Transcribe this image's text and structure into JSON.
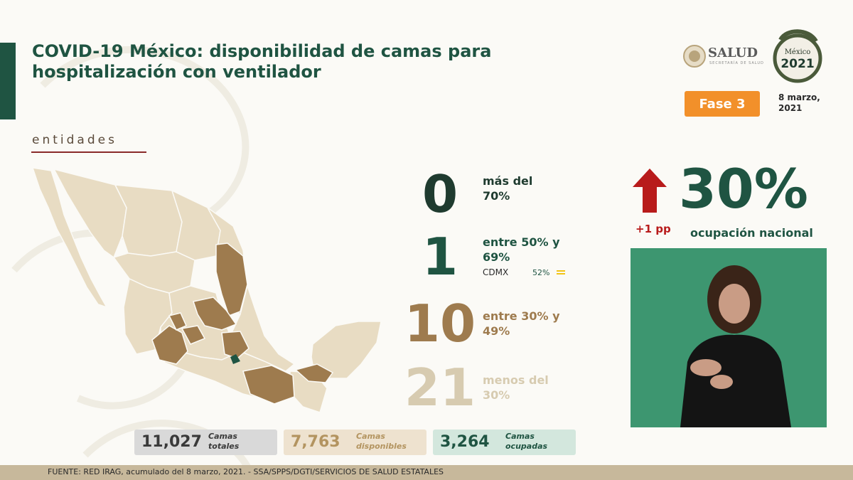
{
  "header": {
    "title": "COVID-19 México: disponibilidad de camas para hospitalización con ventilador",
    "section_label": "entidades"
  },
  "logos": {
    "salud_name": "SALUD",
    "salud_sub": "SECRETARÍA DE SALUD",
    "seal_country": "México",
    "seal_year": "2021"
  },
  "phase": "Fase 3",
  "date": "8 marzo, 2021",
  "categories": [
    {
      "count": "0",
      "label": "más del 70%",
      "bg": "#ecebe5",
      "color": "#1f3b2f"
    },
    {
      "count": "1",
      "label": "entre 50% y 69%",
      "state": "CDMX",
      "state_pct": "52%",
      "bg": "#ecebe5",
      "color": "#1f5442"
    },
    {
      "count": "10",
      "label": "entre 30% y 49%",
      "bg": "#ecebe5",
      "color": "#9e7b4e"
    },
    {
      "count": "21",
      "label": "menos del 30%",
      "bg": "#ecebe5",
      "color": "#d7cbb0"
    }
  ],
  "national": {
    "change": "+1 pp",
    "percent": "30%",
    "label": "ocupación nacional"
  },
  "totals": [
    {
      "value": "11,027",
      "label": "Camas totales",
      "bg": "#d9d9d9",
      "color": "#3a3a3a"
    },
    {
      "value": "7,763",
      "label": "Camas disponibles",
      "bg": "#eee2cf",
      "color": "#b39460"
    },
    {
      "value": "3,264",
      "label": "Camas ocupadas",
      "bg": "#d3e7dd",
      "color": "#1f5442"
    }
  ],
  "footer": "FUENTE: RED IRAG, acumulado del 8 marzo, 2021. - SSA/SPPS/DGTI/SERVICIOS DE SALUD ESTATALES",
  "colors": {
    "primary_green": "#1f5442",
    "tan_dark": "#9e7b4e",
    "tan_light": "#d7cbb0",
    "orange": "#f2902a",
    "red": "#b81b1b"
  }
}
